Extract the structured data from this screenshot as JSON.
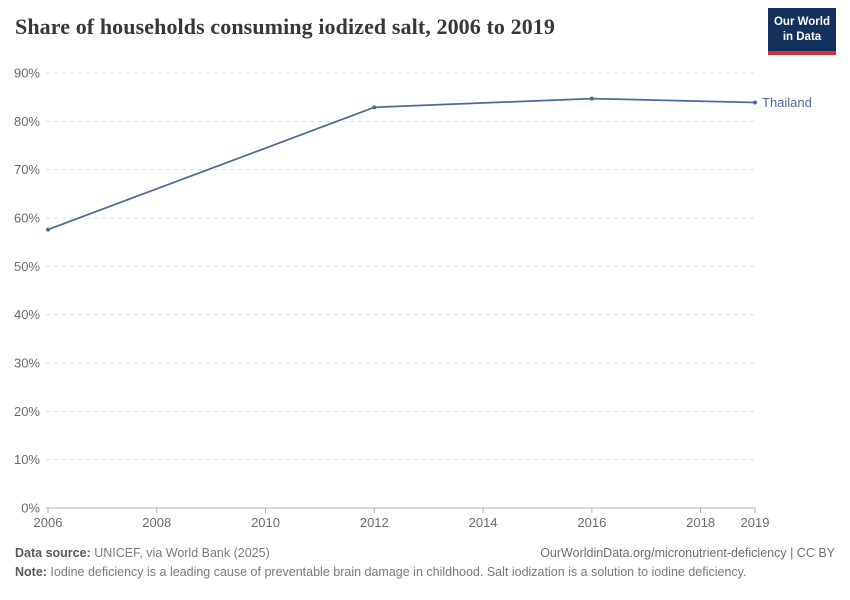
{
  "header": {
    "title": "Share of households consuming iodized salt, 2006 to 2019",
    "logo": {
      "line1": "Our World",
      "line2": "in Data",
      "bg_color": "#14305c",
      "bar_color": "#d0313d"
    }
  },
  "chart_data": {
    "type": "line",
    "title": "Share of households consuming iodized salt, 2006 to 2019",
    "series": [
      {
        "name": "Thailand",
        "color": "#4C6A9C",
        "points": [
          {
            "year": 2006,
            "value": 57.6
          },
          {
            "year": 2012,
            "value": 82.9
          },
          {
            "year": 2016,
            "value": 84.7
          },
          {
            "year": 2019,
            "value": 83.9
          }
        ]
      }
    ],
    "x_ticks": [
      2006,
      2008,
      2010,
      2012,
      2014,
      2016,
      2018,
      2019
    ],
    "y_ticks": [
      0,
      10,
      20,
      30,
      40,
      50,
      60,
      70,
      80,
      90
    ],
    "xlim": [
      2006,
      2019
    ],
    "ylim": [
      0,
      90
    ],
    "y_tick_suffix": "%",
    "grid": "horizontal-dashed",
    "grid_color": "#dcdcdc",
    "axis_color": "#b3b3b3",
    "tick_label_color": "#6b6b6b",
    "end_label": "Thailand"
  },
  "footer": {
    "source_label": "Data source:",
    "source_text": " UNICEF, via World Bank (2025)",
    "rights_text": "OurWorldinData.org/micronutrient-deficiency | CC BY",
    "note_label": "Note:",
    "note_text": " Iodine deficiency is a leading cause of preventable brain damage in childhood. Salt iodization is a solution to iodine deficiency."
  }
}
